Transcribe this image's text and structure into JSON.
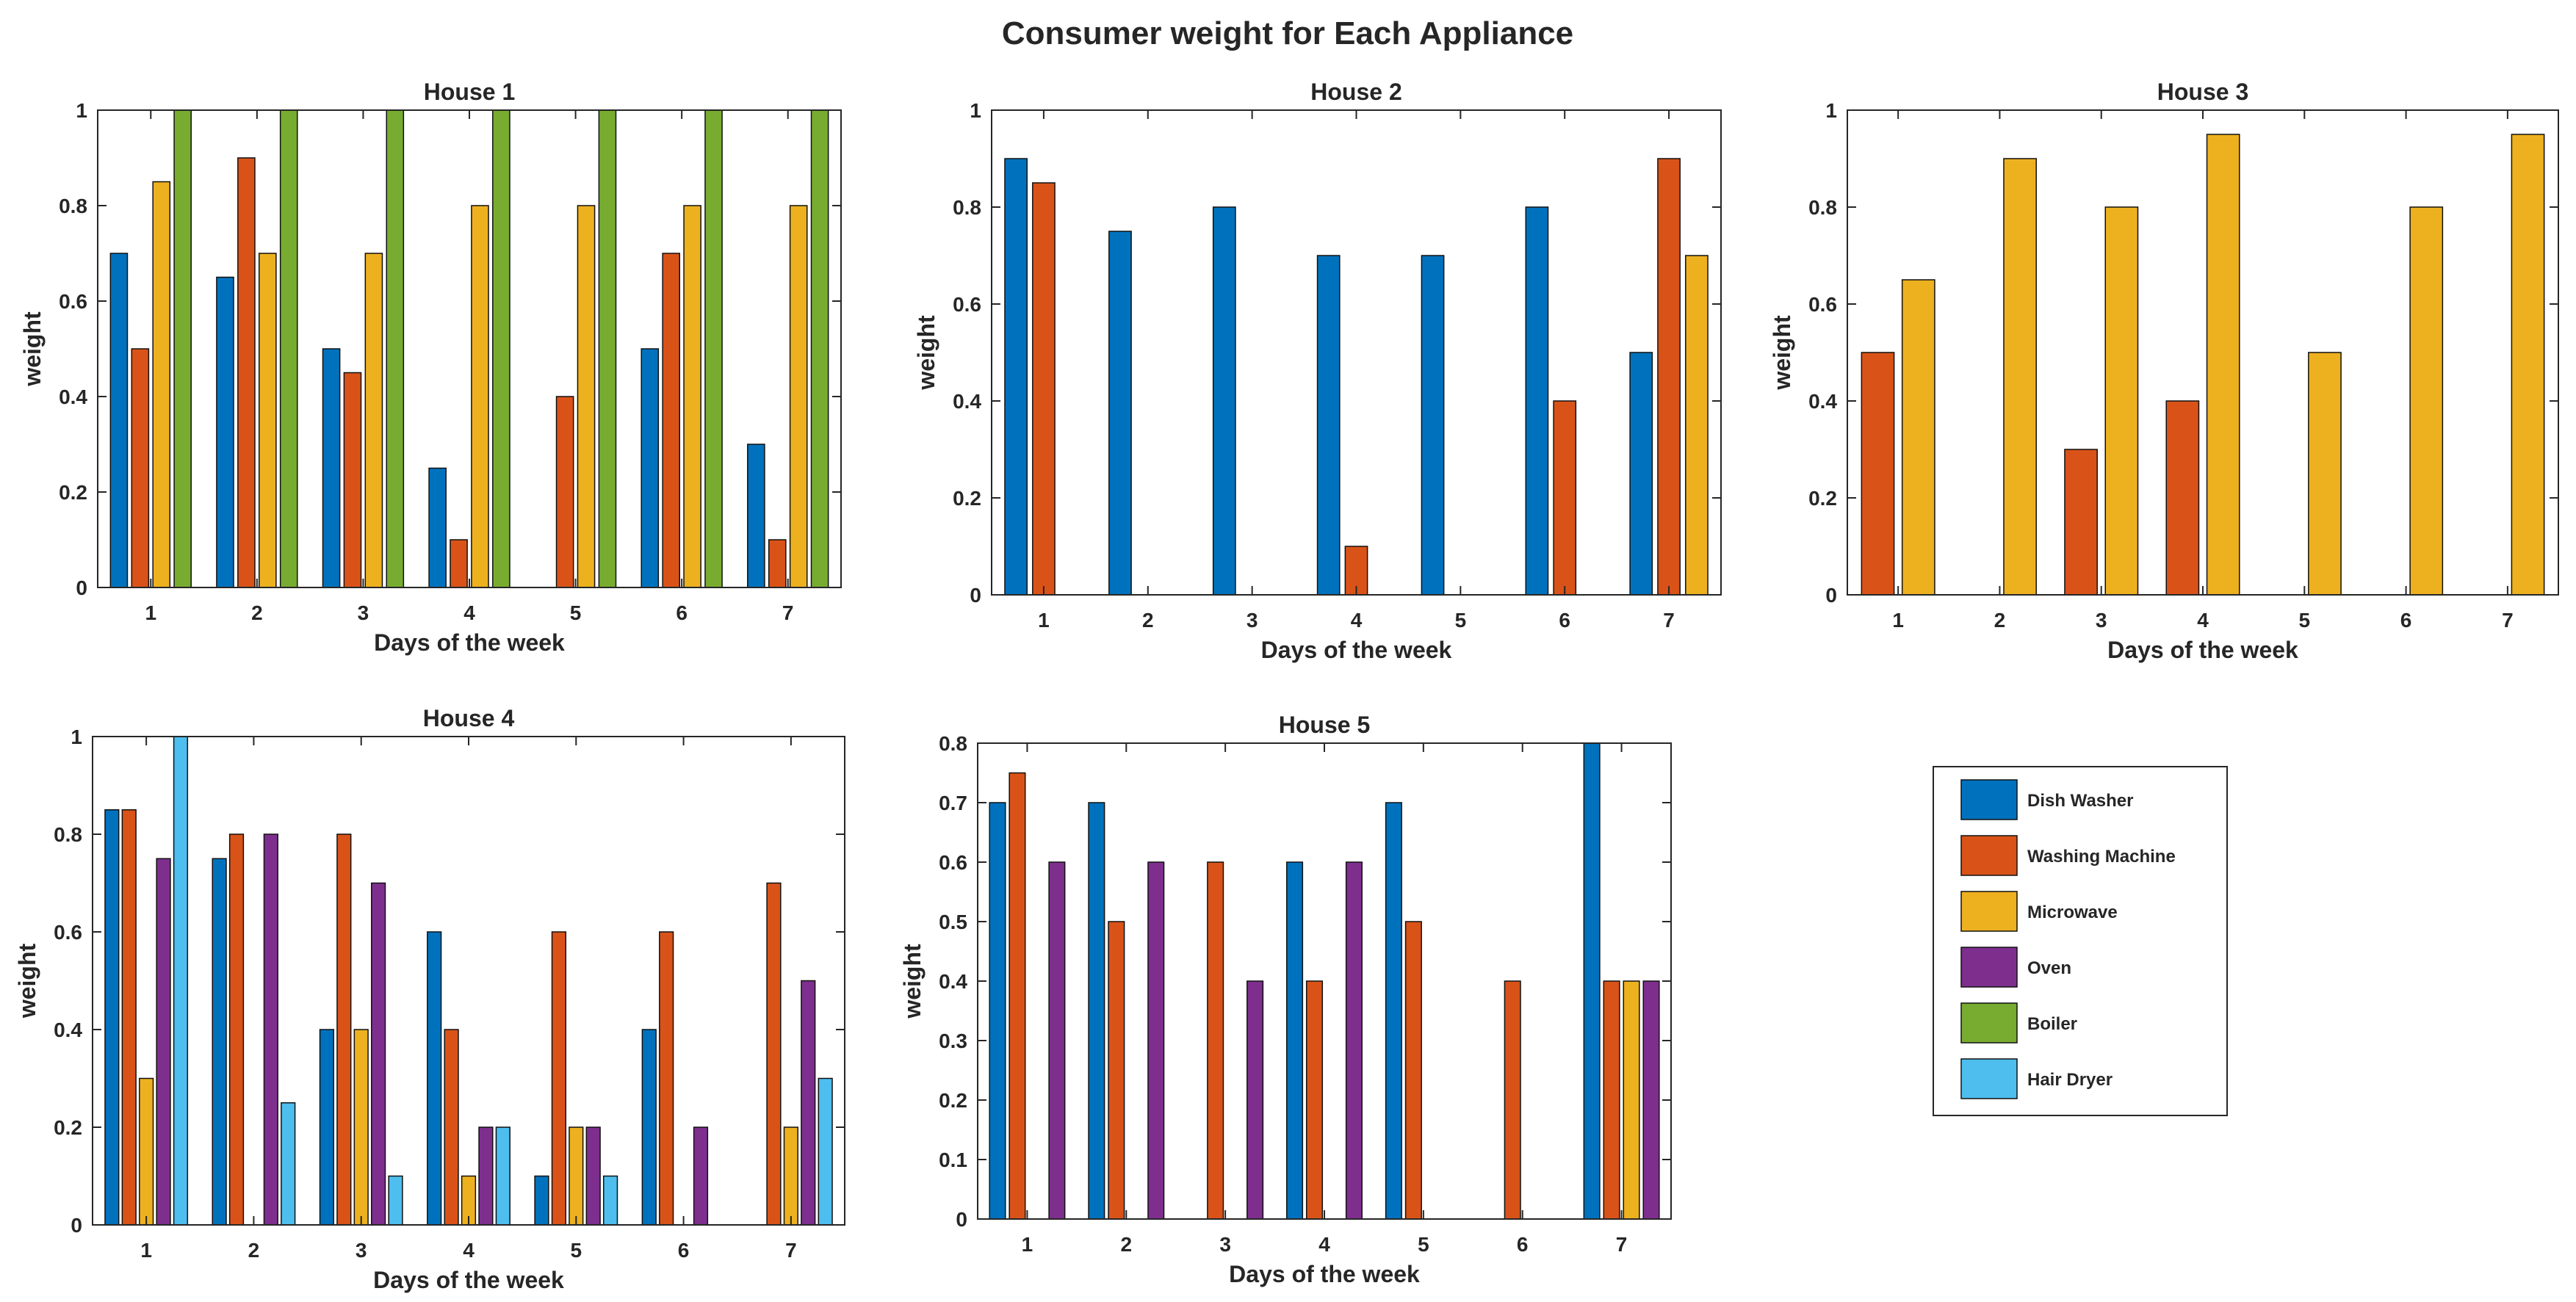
{
  "figure": {
    "title": "Consumer weight for Each Appliance"
  },
  "colors": {
    "Dish Washer": "#0072BD",
    "Washing Machine": "#D95319",
    "Microwave": "#EDB120",
    "Oven": "#7E2F8E",
    "Boiler": "#77AC30",
    "Hair Dryer": "#4DBEEE"
  },
  "legend": {
    "position": "bottom-right",
    "items": [
      "Dish Washer",
      "Washing Machine",
      "Microwave",
      "Oven",
      "Boiler",
      "Hair Dryer"
    ]
  },
  "chart_data": [
    {
      "type": "bar",
      "title": "House 1",
      "xlabel": "Days of the week",
      "ylabel": "weight",
      "categories": [
        "1",
        "2",
        "3",
        "4",
        "5",
        "6",
        "7"
      ],
      "ylim": [
        0,
        1
      ],
      "yticks": [
        "0",
        "0.2",
        "0.4",
        "0.6",
        "0.8",
        "1"
      ],
      "series": [
        {
          "name": "Dish Washer",
          "values": [
            0.7,
            0.65,
            0.5,
            0.25,
            0,
            0.5,
            0.3
          ]
        },
        {
          "name": "Washing Machine",
          "values": [
            0.5,
            0.9,
            0.45,
            0.1,
            0.4,
            0.7,
            0.1
          ]
        },
        {
          "name": "Microwave",
          "values": [
            0.85,
            0.7,
            0.7,
            0.8,
            0.8,
            0.8,
            0.8
          ]
        },
        {
          "name": "Boiler",
          "values": [
            1,
            1,
            1,
            1,
            1,
            1,
            1
          ]
        }
      ]
    },
    {
      "type": "bar",
      "title": "House 2",
      "xlabel": "Days of the week",
      "ylabel": "weight",
      "categories": [
        "1",
        "2",
        "3",
        "4",
        "5",
        "6",
        "7"
      ],
      "ylim": [
        0,
        1
      ],
      "yticks": [
        "0",
        "0.2",
        "0.4",
        "0.6",
        "0.8",
        "1"
      ],
      "series": [
        {
          "name": "Dish Washer",
          "values": [
            0.9,
            0.75,
            0.8,
            0.7,
            0.7,
            0.8,
            0.5
          ]
        },
        {
          "name": "Washing Machine",
          "values": [
            0.85,
            0,
            0,
            0.1,
            0,
            0.4,
            0.9
          ]
        },
        {
          "name": "Microwave",
          "values": [
            0,
            0,
            0,
            0,
            0,
            0,
            0.7
          ]
        }
      ]
    },
    {
      "type": "bar",
      "title": "House 3",
      "xlabel": "Days of the week",
      "ylabel": "weight",
      "categories": [
        "1",
        "2",
        "3",
        "4",
        "5",
        "6",
        "7"
      ],
      "ylim": [
        0,
        1
      ],
      "yticks": [
        "0",
        "0.2",
        "0.4",
        "0.6",
        "0.8",
        "1"
      ],
      "series": [
        {
          "name": "Washing Machine",
          "values": [
            0.5,
            0,
            0.3,
            0.4,
            0,
            0,
            0
          ]
        },
        {
          "name": "Microwave",
          "values": [
            0.65,
            0.9,
            0.8,
            0.95,
            0.5,
            0.8,
            0.95
          ]
        }
      ]
    },
    {
      "type": "bar",
      "title": "House 4",
      "xlabel": "Days of the week",
      "ylabel": "weight",
      "categories": [
        "1",
        "2",
        "3",
        "4",
        "5",
        "6",
        "7"
      ],
      "ylim": [
        0,
        1
      ],
      "yticks": [
        "0",
        "0.2",
        "0.4",
        "0.6",
        "0.8",
        "1"
      ],
      "series": [
        {
          "name": "Dish Washer",
          "values": [
            0.85,
            0.75,
            0.4,
            0.6,
            0.1,
            0.4,
            0
          ]
        },
        {
          "name": "Washing Machine",
          "values": [
            0.85,
            0.8,
            0.8,
            0.4,
            0.6,
            0.6,
            0.7
          ]
        },
        {
          "name": "Microwave",
          "values": [
            0.3,
            0,
            0.4,
            0.1,
            0.2,
            0,
            0.2
          ]
        },
        {
          "name": "Oven",
          "values": [
            0.75,
            0.8,
            0.7,
            0.2,
            0.2,
            0.2,
            0.5
          ]
        },
        {
          "name": "Hair Dryer",
          "values": [
            1,
            0.25,
            0.1,
            0.2,
            0.1,
            0,
            0.3
          ]
        }
      ]
    },
    {
      "type": "bar",
      "title": "House 5",
      "xlabel": "Days of the week",
      "ylabel": "weight",
      "categories": [
        "1",
        "2",
        "3",
        "4",
        "5",
        "6",
        "7"
      ],
      "ylim": [
        0,
        0.8
      ],
      "yticks": [
        "0",
        "0.1",
        "0.2",
        "0.3",
        "0.4",
        "0.5",
        "0.6",
        "0.7",
        "0.8"
      ],
      "series": [
        {
          "name": "Dish Washer",
          "values": [
            0.7,
            0.7,
            0,
            0.6,
            0.7,
            0,
            0.8
          ]
        },
        {
          "name": "Washing Machine",
          "values": [
            0.75,
            0.5,
            0.6,
            0.4,
            0.5,
            0.4,
            0.4
          ]
        },
        {
          "name": "Microwave",
          "values": [
            0,
            0,
            0,
            0,
            0,
            0,
            0.4
          ]
        },
        {
          "name": "Oven",
          "values": [
            0.6,
            0.6,
            0.4,
            0.6,
            0,
            0,
            0.4
          ]
        }
      ]
    }
  ]
}
